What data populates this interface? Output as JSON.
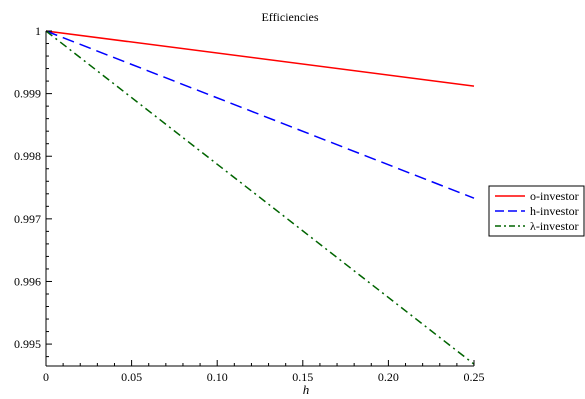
{
  "chart_data": {
    "type": "line",
    "title": "Efficiencies",
    "xlabel": "h",
    "ylabel": "",
    "xlim": [
      0,
      0.25
    ],
    "ylim": [
      0.99465,
      1.0
    ],
    "x_ticks": [
      0,
      0.05,
      0.1,
      0.15,
      0.2,
      0.25
    ],
    "x_tick_labels": [
      "0",
      "0.05",
      "0.10",
      "0.15",
      "0.20",
      "0.25"
    ],
    "y_ticks": [
      0.995,
      0.996,
      0.997,
      0.998,
      0.999,
      1.0
    ],
    "y_tick_labels": [
      "0.995",
      "0.996",
      "0.997",
      "0.998",
      "0.999",
      "1"
    ],
    "grid": false,
    "legend_position": "right",
    "series": [
      {
        "name": "o-investor",
        "color": "#ff0000",
        "dash": "solid",
        "x": [
          0,
          0.25
        ],
        "y": [
          1.0,
          0.99912
        ]
      },
      {
        "name": "h-investor",
        "color": "#0000ff",
        "dash": "dashed",
        "x": [
          0,
          0.25
        ],
        "y": [
          1.0,
          0.99733
        ]
      },
      {
        "name": "λ-investor",
        "color": "#006400",
        "dash": "dashdot",
        "x": [
          0,
          0.25
        ],
        "y": [
          1.0,
          0.99468
        ]
      }
    ]
  }
}
